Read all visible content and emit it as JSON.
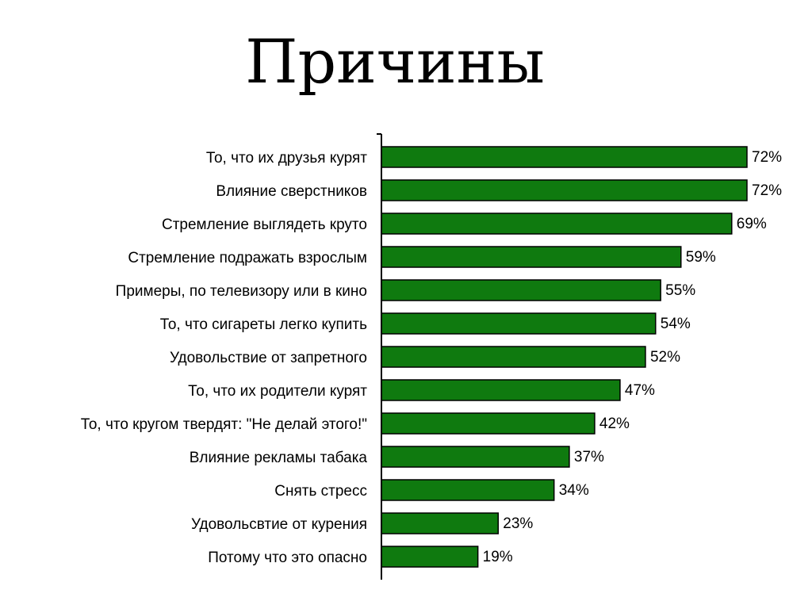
{
  "chart_data": {
    "type": "bar",
    "orientation": "horizontal",
    "title": "Причины",
    "xlabel": "",
    "ylabel": "",
    "xlim": [
      0,
      72
    ],
    "grid": false,
    "bar_color": "#0f7a0f",
    "categories": [
      "То, что их друзья курят",
      "Влияние сверстников",
      "Стремление выглядеть круто",
      "Стремление подражать взрослым",
      "Примеры, по телевизору или в кино",
      "То, что сигареты легко купить",
      "Удовольствие от запретного",
      "То, что их родители курят",
      "То, что кругом твердят: \"Не делай этого!\"",
      "Влияние рекламы табака",
      "Снять стресс",
      "Удовольсвтие от курения",
      "Потому что это опасно"
    ],
    "values": [
      72,
      72,
      69,
      59,
      55,
      54,
      52,
      47,
      42,
      37,
      34,
      23,
      19
    ],
    "value_labels": [
      "72%",
      "72%",
      "69%",
      "59%",
      "55%",
      "54%",
      "52%",
      "47%",
      "42%",
      "37%",
      "34%",
      "23%",
      "19%"
    ]
  }
}
